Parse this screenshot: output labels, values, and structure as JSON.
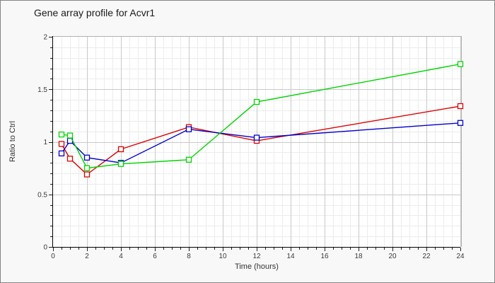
{
  "chart_data": {
    "type": "line",
    "title": "Gene array profile for Acvr1",
    "xlabel": "Time (hours)",
    "ylabel": "Ratio to Ctrl",
    "xlim": [
      0,
      24
    ],
    "ylim": [
      0,
      2
    ],
    "x_major_ticks": [
      0,
      2,
      4,
      6,
      8,
      10,
      12,
      14,
      16,
      18,
      20,
      22,
      24
    ],
    "y_major_ticks": [
      0,
      0.5,
      1,
      1.5,
      2
    ],
    "x_major_step": 2,
    "x_minor_step": 0.5,
    "y_major_step": 0.5,
    "y_minor_step": 0.1,
    "grid": true,
    "legend": "none",
    "marker": "open-square",
    "x": [
      0.5,
      1,
      2,
      4,
      8,
      12,
      24
    ],
    "series": [
      {
        "name": "series-red",
        "color": "#dd0000",
        "values": [
          0.98,
          0.84,
          0.69,
          0.93,
          1.14,
          1.01,
          1.34
        ]
      },
      {
        "name": "series-blue",
        "color": "#0000cc",
        "values": [
          0.89,
          1.01,
          0.85,
          0.8,
          1.12,
          1.04,
          1.18
        ]
      },
      {
        "name": "series-green",
        "color": "#00d500",
        "values": [
          1.07,
          1.06,
          0.75,
          0.79,
          0.83,
          1.38,
          1.74
        ]
      }
    ],
    "colors": {
      "plot_bg": "#ffffff",
      "minor_grid": "#ececec",
      "major_grid": "#c9c9c9",
      "plot_border": "#b2b2b2",
      "axis": "#000000",
      "tick": "#222222",
      "marker_fill": "#ffffff"
    }
  }
}
